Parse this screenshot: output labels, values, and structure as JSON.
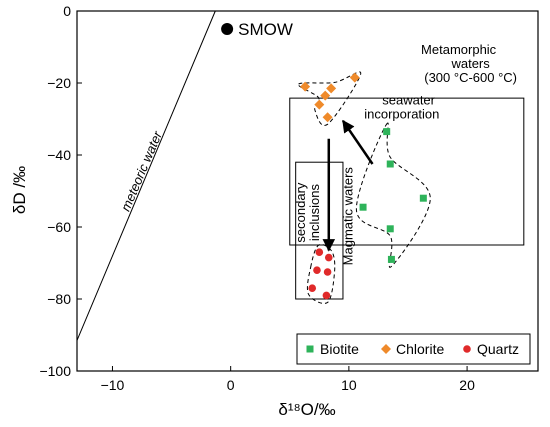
{
  "chart_data": {
    "type": "scatter",
    "title": "",
    "xlabel": "δ¹⁸O/‰",
    "ylabel": "δD /‰",
    "xlim": [
      -13,
      26
    ],
    "ylim": [
      -100,
      0
    ],
    "xticks": [
      -10,
      0,
      10,
      20
    ],
    "yticks": [
      0,
      -20,
      -40,
      -60,
      -80,
      -100
    ],
    "xtick_labels": [
      "−10",
      "0",
      "10",
      "20"
    ],
    "ytick_labels": [
      "0",
      "−20",
      "−40",
      "−60",
      "−80",
      "−100"
    ],
    "grid": false,
    "legend_position": "bottom-right",
    "series": [
      {
        "name": "Biotite",
        "marker": "square",
        "color": "#2eb35a",
        "points": [
          {
            "x": 13.2,
            "y": -33.5
          },
          {
            "x": 13.5,
            "y": -42.5
          },
          {
            "x": 16.3,
            "y": -52.0
          },
          {
            "x": 11.2,
            "y": -54.5
          },
          {
            "x": 13.5,
            "y": -60.5
          },
          {
            "x": 13.6,
            "y": -69.0
          }
        ]
      },
      {
        "name": "Chlorite",
        "marker": "diamond",
        "color": "#ef8a2a",
        "points": [
          {
            "x": 6.3,
            "y": -21.0
          },
          {
            "x": 8.5,
            "y": -21.5
          },
          {
            "x": 10.5,
            "y": -18.5
          },
          {
            "x": 8.0,
            "y": -23.5
          },
          {
            "x": 7.5,
            "y": -26.0
          },
          {
            "x": 8.2,
            "y": -29.5
          }
        ]
      },
      {
        "name": "Quartz",
        "marker": "circle",
        "color": "#e02a2a",
        "points": [
          {
            "x": 7.5,
            "y": -67.0
          },
          {
            "x": 8.3,
            "y": -68.5
          },
          {
            "x": 7.3,
            "y": -72.0
          },
          {
            "x": 8.2,
            "y": -72.5
          },
          {
            "x": 6.9,
            "y": -77.0
          },
          {
            "x": 8.1,
            "y": -79.0
          }
        ]
      }
    ],
    "smow": {
      "label": "SMOW",
      "x": -0.3,
      "y": -5.0
    },
    "meteoric_line": {
      "label": "meteoric water",
      "x1": -13,
      "y1": -91.5,
      "x2": -1.3,
      "y2": 0
    },
    "fields": [
      {
        "name": "metamorphic",
        "label_lines": [
          "Metamorphic",
          "waters",
          "(300 °C-600 °C)"
        ],
        "x1": 5,
        "x2": 24.8,
        "y1": -24.2,
        "y2": -65.0
      },
      {
        "name": "magmatic",
        "label": "Magmatic waters",
        "x1": 5.5,
        "x2": 9.5,
        "y1": -42.0,
        "y2": -80.0
      }
    ],
    "arrows": [
      {
        "name": "seawater",
        "label_lines": [
          "seawater",
          "incorporation"
        ],
        "from": [
          12.0,
          -42.5
        ],
        "to": [
          9.5,
          -30.5
        ]
      },
      {
        "name": "secondary",
        "label_lines": [
          "secondary",
          "inclusions"
        ],
        "from": [
          8.3,
          -35.5
        ],
        "to": [
          8.3,
          -66.5
        ]
      }
    ]
  }
}
